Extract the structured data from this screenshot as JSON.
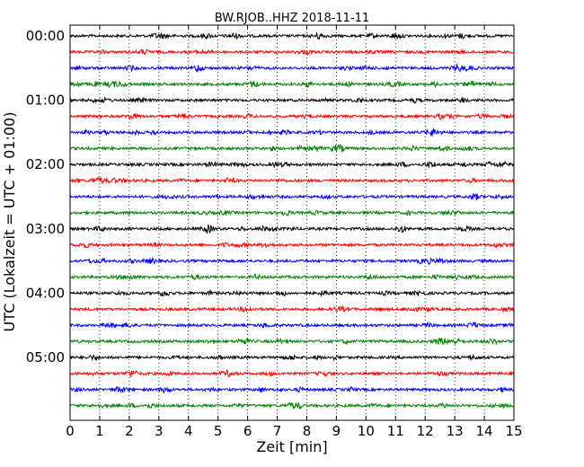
{
  "chart_data": {
    "type": "line",
    "title": "BW.RJOB..HHZ 2018-11-11",
    "xlabel": "Zeit  [min]",
    "ylabel": "UTC (Lokalzeit = UTC + 01:00)",
    "xlim": [
      0,
      15
    ],
    "x_ticks": [
      "0",
      "1",
      "2",
      "3",
      "4",
      "5",
      "6",
      "7",
      "8",
      "9",
      "10",
      "11",
      "12",
      "13",
      "14",
      "15"
    ],
    "y_ticks": [
      "00:00",
      "01:00",
      "02:00",
      "03:00",
      "04:00",
      "05:00"
    ],
    "grid": "vertical dotted",
    "trace_colors": [
      "#000000",
      "#ff0000",
      "#0000ff",
      "#008000"
    ],
    "rows": [
      "00:00",
      "00:15",
      "00:30",
      "00:45",
      "01:00",
      "01:15",
      "01:30",
      "01:45",
      "02:00",
      "02:15",
      "02:30",
      "02:45",
      "03:00",
      "03:15",
      "03:30",
      "03:45",
      "04:00",
      "04:15",
      "04:30",
      "04:45",
      "05:00",
      "05:15",
      "05:30",
      "05:45"
    ],
    "events": [
      {
        "row": 0,
        "t": 8.4,
        "amp": 1.8
      },
      {
        "row": 2,
        "t": 13.1,
        "amp": 2.0
      },
      {
        "row": 3,
        "t": 6.2,
        "amp": 1.7
      },
      {
        "row": 7,
        "t": 9.0,
        "amp": 2.0
      },
      {
        "row": 7,
        "t": 8.3,
        "amp": 1.6
      },
      {
        "row": 9,
        "t": 1.0,
        "amp": 1.5
      },
      {
        "row": 16,
        "t": 3.2,
        "amp": 1.6
      },
      {
        "row": 21,
        "t": 2.1,
        "amp": 2.0
      },
      {
        "row": 14,
        "t": 12.5,
        "amp": 1.4
      },
      {
        "row": 23,
        "t": 7.5,
        "amp": 1.5
      }
    ]
  }
}
